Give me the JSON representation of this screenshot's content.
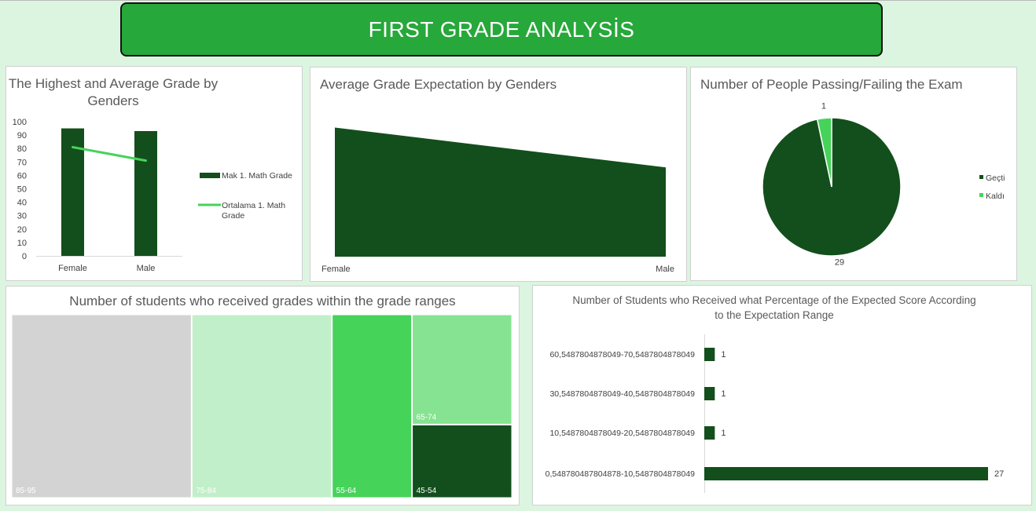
{
  "banner": {
    "title": "FIRST GRADE ANALYSİS"
  },
  "colors": {
    "dark_green": "#134f1c",
    "light_green": "#46d35a",
    "banner_green": "#27a83a"
  },
  "chart_data": [
    {
      "id": "highest_average",
      "type": "bar",
      "title": "The Highest and Average Grade by Genders",
      "title_lines": [
        "The Highest and Average Grade by",
        "Genders"
      ],
      "categories": [
        "Female",
        "Male"
      ],
      "series": [
        {
          "name": "Mak 1. Math Grade",
          "type": "bar",
          "values": [
            95,
            93
          ]
        },
        {
          "name": "Ortalama 1. Math Grade",
          "type": "line",
          "values": [
            81,
            71
          ]
        }
      ],
      "legend_lines": [
        [
          "Mak 1. Math Grade"
        ],
        [
          "Ortalama 1. Math",
          "Grade"
        ]
      ],
      "ylim": [
        0,
        100
      ],
      "yticks": [
        0,
        10,
        20,
        30,
        40,
        50,
        60,
        70,
        80,
        90,
        100
      ],
      "grid": false,
      "legend": "right"
    },
    {
      "id": "expectation",
      "type": "area",
      "title": "Average Grade Expectation by Genders",
      "categories": [
        "Female",
        "Male"
      ],
      "values": [
        94,
        65
      ],
      "ylim": [
        0,
        100
      ],
      "grid": false
    },
    {
      "id": "pass_fail",
      "type": "pie",
      "title": "Number of People Passing/Failing the Exam",
      "categories": [
        "Geçti",
        "Kaldı"
      ],
      "values": [
        29,
        1
      ],
      "labels": [
        "29",
        "1"
      ],
      "legend": "right"
    },
    {
      "id": "grade_ranges",
      "type": "treemap",
      "title": "Number of students who received grades within the grade ranges",
      "categories": [
        "85-95",
        "75-84",
        "55-64",
        "65-74",
        "45-54"
      ],
      "values": [
        9,
        7,
        4,
        3,
        2
      ]
    },
    {
      "id": "expected_percentage",
      "type": "bar",
      "orientation": "horizontal",
      "title": "Number of Students who Received what Percentage of the Expected Score According to the Expectation Range",
      "title_lines": [
        "Number of Students who Received what Percentage of the Expected Score According",
        "to the Expectation Range"
      ],
      "categories": [
        "60,5487804878049-70,5487804878049",
        "30,5487804878049-40,5487804878049",
        "10,5487804878049-20,5487804878049",
        "0,548780487804878-10,5487804878049"
      ],
      "values": [
        1,
        1,
        1,
        27
      ],
      "labels": [
        "1",
        "1",
        "1",
        "27"
      ],
      "xlim": [
        0,
        27
      ]
    }
  ]
}
